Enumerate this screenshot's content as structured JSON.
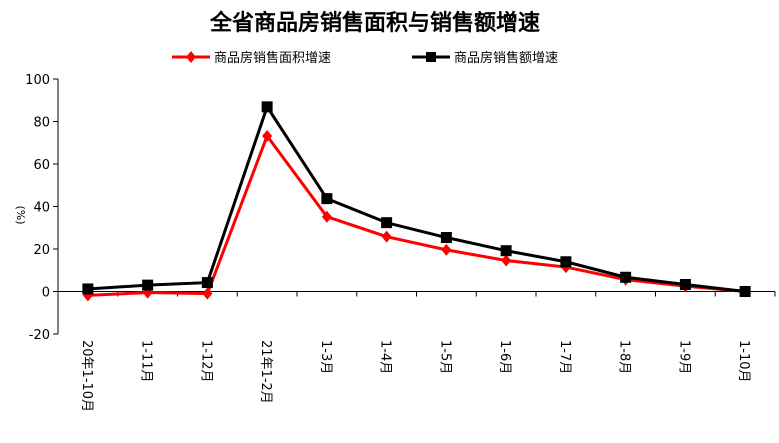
{
  "chart_data": {
    "type": "line",
    "title": "全省商品房销售面积与销售额增速",
    "ylabel": "(%)",
    "xlabel": "",
    "ylim": [
      -20,
      100
    ],
    "yticks": [
      -20,
      0,
      20,
      40,
      60,
      80,
      100
    ],
    "categories": [
      "20年1-10月",
      "1-11月",
      "1-12月",
      "21年1-2月",
      "1-3月",
      "1-4月",
      "1-5月",
      "1-6月",
      "1-7月",
      "1-8月",
      "1-9月",
      "1-10月"
    ],
    "series": [
      {
        "name": "商品房销售面积增速",
        "color": "#ff0000",
        "marker": "diamond",
        "values": [
          -1.8,
          -0.5,
          -1.0,
          73.2,
          35.2,
          25.8,
          19.6,
          14.6,
          11.5,
          5.6,
          2.5,
          0.0
        ]
      },
      {
        "name": "商品房销售额增速",
        "color": "#000000",
        "marker": "square",
        "values": [
          1.2,
          3.0,
          4.2,
          86.9,
          43.7,
          32.4,
          25.4,
          19.2,
          14.0,
          6.7,
          3.3,
          0.0
        ]
      }
    ],
    "legend": "top",
    "grid": false
  }
}
